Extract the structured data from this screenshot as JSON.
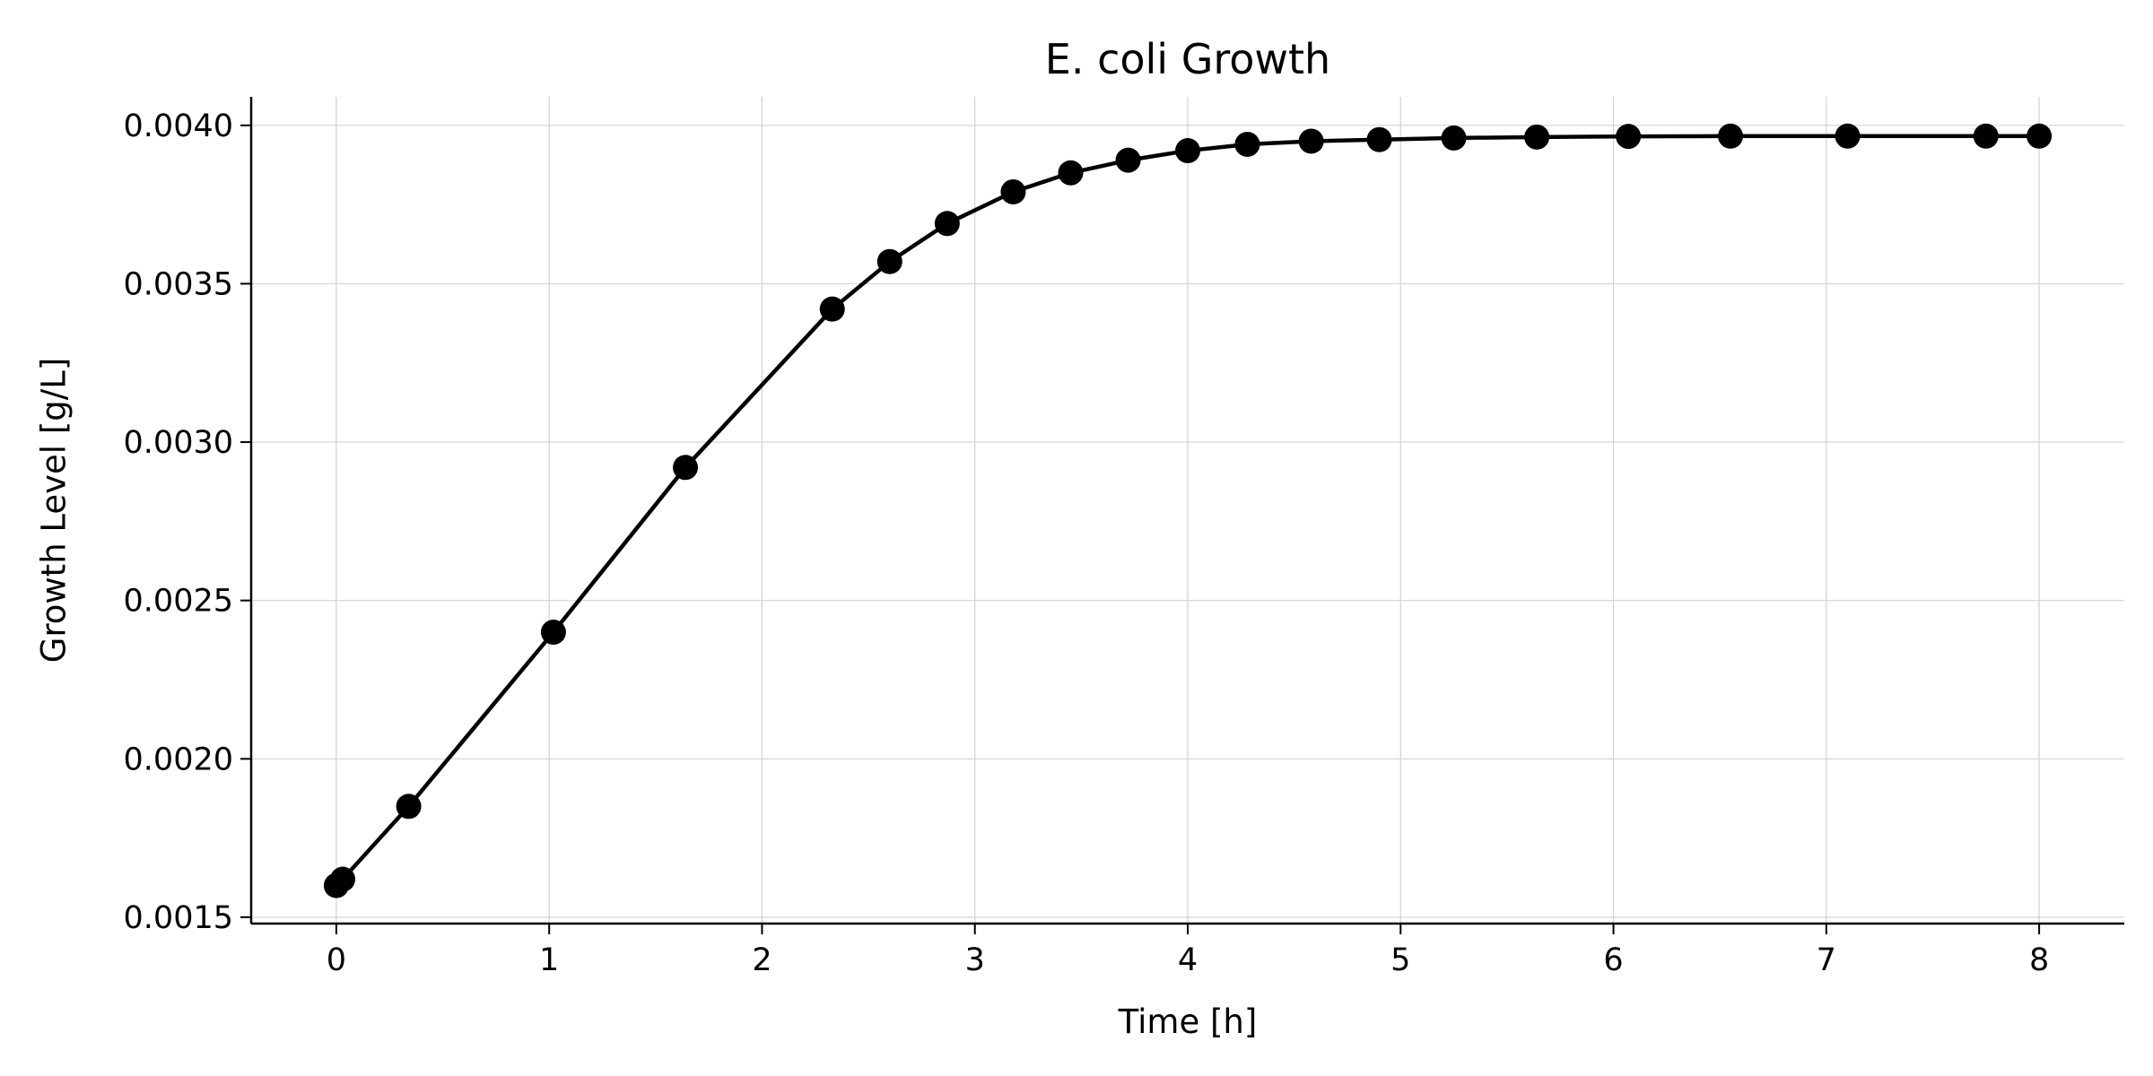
{
  "chart_data": {
    "type": "line",
    "title": "E. coli Growth",
    "xlabel": "Time [h]",
    "ylabel": "Growth Level [g/L]",
    "xlim": [
      -0.4,
      8.4
    ],
    "ylim": [
      0.00148,
      0.00409
    ],
    "x_ticks": [
      {
        "value": 0,
        "label": "0"
      },
      {
        "value": 1,
        "label": "1"
      },
      {
        "value": 2,
        "label": "2"
      },
      {
        "value": 3,
        "label": "3"
      },
      {
        "value": 4,
        "label": "4"
      },
      {
        "value": 5,
        "label": "5"
      },
      {
        "value": 6,
        "label": "6"
      },
      {
        "value": 7,
        "label": "7"
      },
      {
        "value": 8,
        "label": "8"
      }
    ],
    "y_ticks": [
      {
        "value": 0.0015,
        "label": "0.0015"
      },
      {
        "value": 0.002,
        "label": "0.0020"
      },
      {
        "value": 0.0025,
        "label": "0.0025"
      },
      {
        "value": 0.003,
        "label": "0.0030"
      },
      {
        "value": 0.0035,
        "label": "0.0035"
      },
      {
        "value": 0.004,
        "label": "0.0040"
      }
    ],
    "grid": true,
    "marker": "circle",
    "line_color": "#000000",
    "marker_color": "#000000",
    "grid_color": "#d3d3d3",
    "series": [
      {
        "x": [
          0.0,
          0.03,
          0.34,
          1.02,
          1.64,
          2.33,
          2.6,
          2.87,
          3.18,
          3.45,
          3.72,
          4.0,
          4.28,
          4.58,
          4.9,
          5.25,
          5.64,
          6.07,
          6.55,
          7.1,
          7.75,
          8.0
        ],
        "y": [
          0.0016,
          0.00162,
          0.00185,
          0.0024,
          0.00292,
          0.00342,
          0.00357,
          0.00369,
          0.00379,
          0.00385,
          0.00389,
          0.00392,
          0.00394,
          0.00395,
          0.003955,
          0.00396,
          0.003963,
          0.003965,
          0.003966,
          0.003966,
          0.003966,
          0.003966
        ]
      }
    ]
  }
}
